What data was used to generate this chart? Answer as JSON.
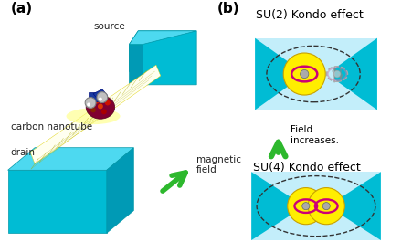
{
  "bg_color": "#ffffff",
  "cyan_light": "#4dd9f0",
  "cyan_mid": "#00bcd4",
  "cyan_dark": "#0097a7",
  "yellow": "#ffee00",
  "yellow_dark": "#c8a000",
  "green": "#2db82d",
  "dark_blue": "#1a237e",
  "magenta": "#cc0077",
  "gray_sphere": "#aaaaaa",
  "label_a": "(a)",
  "label_b": "(b)",
  "title_su2": "SU(2) Kondo effect",
  "title_su4": "SU(4) Kondo effect",
  "text_source": "source",
  "text_drain": "drain",
  "text_cnt": "carbon nanotube",
  "text_field": "magnetic\nfield",
  "text_arrow": "Field\nincreases."
}
